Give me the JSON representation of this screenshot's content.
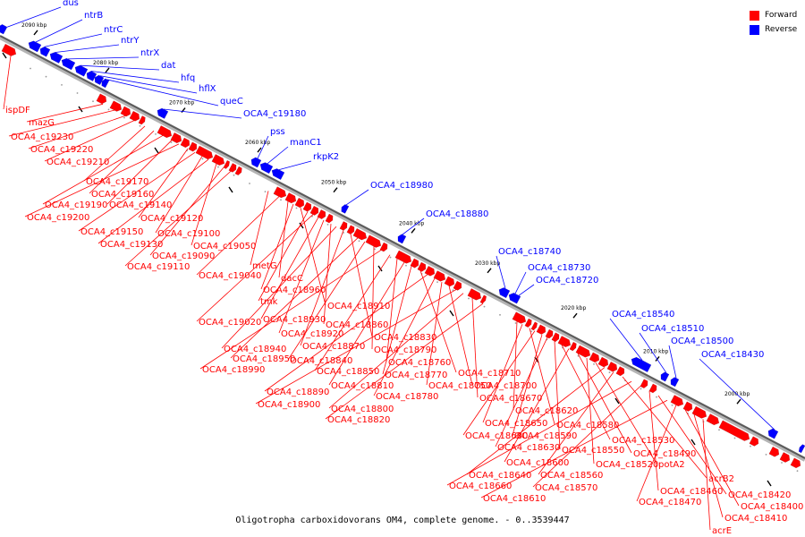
{
  "legend": {
    "forward_label": "Forward",
    "reverse_label": "Reverse",
    "forward_color": "#ff0000",
    "reverse_color": "#0000ff"
  },
  "caption": "Oligotropha carboxidovorans OM4, complete genome. - 0..3539447",
  "ticks": [
    "2090 kbp",
    "2080 kbp",
    "2070 kbp",
    "2060 kbp",
    "2050 kbp",
    "2040 kbp",
    "2030 kbp",
    "2020 kbp",
    "2010 kbp",
    "2000 kbp"
  ],
  "reverse_genes": [
    "dus",
    "ntrB",
    "ntrC",
    "ntrY",
    "ntrX",
    "dat",
    "hfq",
    "hflX",
    "queC",
    "OCA4_c19180",
    "pss",
    "manC1",
    "rkpK2",
    "OCA4_c18980",
    "OCA4_c18880",
    "OCA4_c18740",
    "OCA4_c18730",
    "OCA4_c18720",
    "OCA4_c18540",
    "OCA4_c18510",
    "OCA4_c18500",
    "OCA4_c18430"
  ],
  "forward_genes": [
    "ispDF",
    "mazG",
    "OCA4_c19230",
    "OCA4_c19220",
    "OCA4_c19210",
    "OCA4_c19170",
    "OCA4_c19160",
    "OCA4_c19190",
    "OCA4_c19140",
    "OCA4_c19200",
    "OCA4_c19120",
    "OCA4_c19150",
    "OCA4_c19100",
    "OCA4_c19130",
    "OCA4_c19050",
    "OCA4_c19090",
    "OCA4_c19110",
    "metG",
    "OCA4_c19040",
    "dacC",
    "OCA4_c18960",
    "OCA4_c18910",
    "tmk",
    "OCA4_c19020",
    "OCA4_c18930",
    "OCA4_c18920",
    "OCA4_c18860",
    "OCA4_c18940",
    "OCA4_c18870",
    "OCA4_c18830",
    "OCA4_c18950",
    "OCA4_c18840",
    "OCA4_c18790",
    "OCA4_c18990",
    "OCA4_c18850",
    "OCA4_c18760",
    "OCA4_c18810",
    "OCA4_c18770",
    "OCA4_c18710",
    "OCA4_c18890",
    "OCA4_c18780",
    "OCA4_c18750",
    "OCA4_c18700",
    "OCA4_c18900",
    "OCA4_c18800",
    "OCA4_c18670",
    "OCA4_c18820",
    "OCA4_c18620",
    "OCA4_c18650",
    "OCA4_c18580",
    "OCA4_c18680",
    "OCA4_c18590",
    "OCA4_c18630",
    "OCA4_c18550",
    "OCA4_c18530",
    "OCA4_c18600",
    "OCA4_c18490",
    "OCA4_c18520",
    "potA2",
    "OCA4_c18640",
    "OCA4_c18560",
    "acrB2",
    "OCA4_c18660",
    "OCA4_c18570",
    "OCA4_c18460",
    "OCA4_c18420",
    "OCA4_c18610",
    "OCA4_c18470",
    "OCA4_c18400",
    "OCA4_c18410",
    "acrE"
  ]
}
